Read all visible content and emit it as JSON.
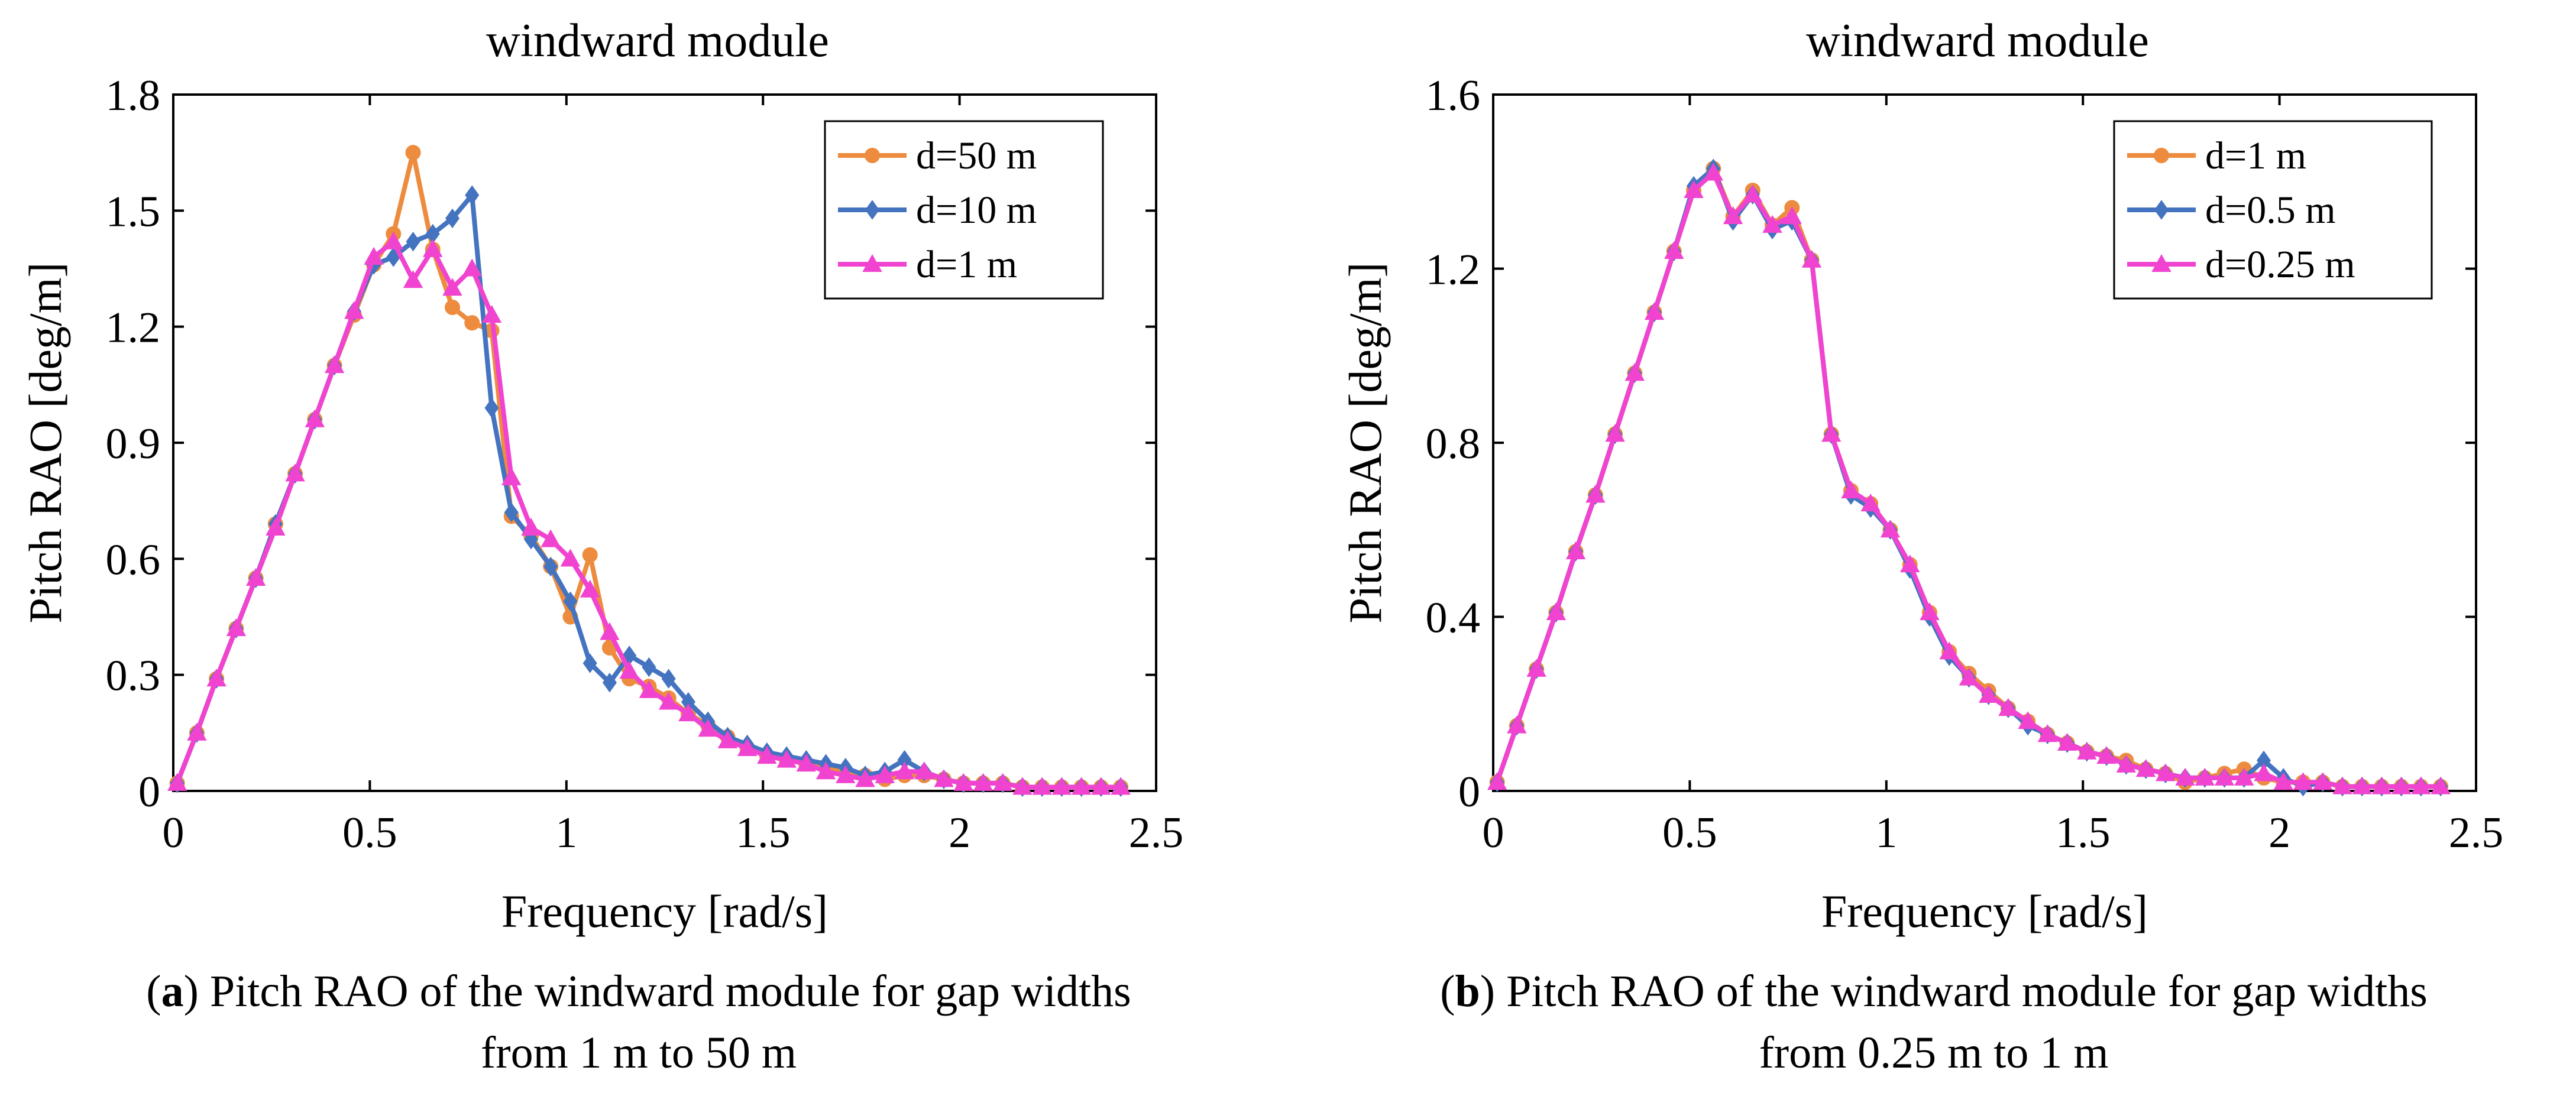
{
  "charts": [
    {
      "title": "windward module",
      "xlabel": "Frequency [rad/s]",
      "ylabel": "Pitch RAO  [deg/m]"
    },
    {
      "title": "windward module",
      "xlabel": "Frequency [rad/s]",
      "ylabel": "Pitch RAO  [deg/m]"
    }
  ],
  "captions": [
    {
      "letter": "a",
      "open": "(",
      "close": ")",
      "text": " Pitch RAO of the windward module for gap widths",
      "line2": "from 1 m to 50 m"
    },
    {
      "letter": "b",
      "open": "(",
      "close": ")",
      "text": " Pitch RAO of the windward module for gap widths",
      "line2": "from 0.25 m to 1 m"
    }
  ],
  "chart_data": [
    {
      "type": "line",
      "title": "windward module",
      "xlabel": "Frequency [rad/s]",
      "ylabel": "Pitch RAO  [deg/m]",
      "xlim": [
        0,
        2.5
      ],
      "ylim": [
        0,
        1.8
      ],
      "xticks": [
        0,
        0.5,
        1,
        1.5,
        2,
        2.5
      ],
      "xtick_labels": [
        "0",
        "0.5",
        "1",
        "1.5",
        "2",
        "2.5"
      ],
      "yticks": [
        0,
        0.3,
        0.6,
        0.9,
        1.2,
        1.5,
        1.8
      ],
      "ytick_labels": [
        "0",
        "0.3",
        "0.6",
        "0.9",
        "1.2",
        "1.5",
        "1.8"
      ],
      "grid": false,
      "legend_position": "top-right",
      "series": [
        {
          "name": "d=50 m",
          "color": "#ED8C3E",
          "marker": "circle",
          "x": [
            0.01,
            0.06,
            0.11,
            0.16,
            0.21,
            0.26,
            0.31,
            0.36,
            0.41,
            0.46,
            0.51,
            0.56,
            0.61,
            0.66,
            0.71,
            0.76,
            0.81,
            0.86,
            0.91,
            0.96,
            1.01,
            1.06,
            1.11,
            1.16,
            1.21,
            1.26,
            1.31,
            1.36,
            1.41,
            1.46,
            1.51,
            1.56,
            1.61,
            1.66,
            1.71,
            1.76,
            1.81,
            1.86,
            1.91,
            1.96,
            2.01,
            2.06,
            2.11,
            2.16,
            2.21,
            2.26,
            2.31,
            2.36,
            2.41
          ],
          "y": [
            0.02,
            0.15,
            0.29,
            0.42,
            0.55,
            0.69,
            0.82,
            0.96,
            1.1,
            1.23,
            1.36,
            1.44,
            1.65,
            1.4,
            1.25,
            1.21,
            1.19,
            0.71,
            0.66,
            0.58,
            0.45,
            0.61,
            0.37,
            0.29,
            0.27,
            0.24,
            0.2,
            0.17,
            0.14,
            0.11,
            0.09,
            0.08,
            0.07,
            0.06,
            0.05,
            0.04,
            0.03,
            0.04,
            0.04,
            0.03,
            0.02,
            0.02,
            0.02,
            0.01,
            0.01,
            0.01,
            0.01,
            0.01,
            0.01
          ]
        },
        {
          "name": "d=10 m",
          "color": "#4473C0",
          "marker": "diamond",
          "x": [
            0.01,
            0.06,
            0.11,
            0.16,
            0.21,
            0.26,
            0.31,
            0.36,
            0.41,
            0.46,
            0.51,
            0.56,
            0.61,
            0.66,
            0.71,
            0.76,
            0.81,
            0.86,
            0.91,
            0.96,
            1.01,
            1.06,
            1.11,
            1.16,
            1.21,
            1.26,
            1.31,
            1.36,
            1.41,
            1.46,
            1.51,
            1.56,
            1.61,
            1.66,
            1.71,
            1.76,
            1.81,
            1.86,
            1.91,
            1.96,
            2.01,
            2.06,
            2.11,
            2.16,
            2.21,
            2.26,
            2.31,
            2.36,
            2.41
          ],
          "y": [
            0.02,
            0.15,
            0.29,
            0.42,
            0.55,
            0.69,
            0.82,
            0.96,
            1.1,
            1.24,
            1.36,
            1.38,
            1.42,
            1.44,
            1.48,
            1.54,
            0.99,
            0.72,
            0.65,
            0.58,
            0.49,
            0.33,
            0.28,
            0.35,
            0.32,
            0.29,
            0.23,
            0.18,
            0.14,
            0.12,
            0.1,
            0.09,
            0.08,
            0.07,
            0.06,
            0.04,
            0.05,
            0.08,
            0.05,
            0.03,
            0.02,
            0.02,
            0.02,
            0.01,
            0.01,
            0.01,
            0.01,
            0.01,
            0.01
          ]
        },
        {
          "name": "d=1 m",
          "color": "#F044D0",
          "marker": "triangle",
          "x": [
            0.01,
            0.06,
            0.11,
            0.16,
            0.21,
            0.26,
            0.31,
            0.36,
            0.41,
            0.46,
            0.51,
            0.56,
            0.61,
            0.66,
            0.71,
            0.76,
            0.81,
            0.86,
            0.91,
            0.96,
            1.01,
            1.06,
            1.11,
            1.16,
            1.21,
            1.26,
            1.31,
            1.36,
            1.41,
            1.46,
            1.51,
            1.56,
            1.61,
            1.66,
            1.71,
            1.76,
            1.81,
            1.86,
            1.91,
            1.96,
            2.01,
            2.06,
            2.11,
            2.16,
            2.21,
            2.26,
            2.31,
            2.36,
            2.41
          ],
          "y": [
            0.02,
            0.15,
            0.29,
            0.42,
            0.55,
            0.68,
            0.82,
            0.96,
            1.1,
            1.24,
            1.38,
            1.42,
            1.32,
            1.4,
            1.3,
            1.35,
            1.23,
            0.81,
            0.68,
            0.65,
            0.6,
            0.52,
            0.41,
            0.31,
            0.26,
            0.23,
            0.2,
            0.16,
            0.13,
            0.11,
            0.09,
            0.08,
            0.07,
            0.05,
            0.04,
            0.03,
            0.04,
            0.05,
            0.05,
            0.03,
            0.02,
            0.02,
            0.02,
            0.01,
            0.01,
            0.01,
            0.01,
            0.01,
            0.01
          ]
        }
      ]
    },
    {
      "type": "line",
      "title": "windward module",
      "xlabel": "Frequency [rad/s]",
      "ylabel": "Pitch RAO  [deg/m]",
      "xlim": [
        0,
        2.5
      ],
      "ylim": [
        0,
        1.6
      ],
      "xticks": [
        0,
        0.5,
        1,
        1.5,
        2,
        2.5
      ],
      "xtick_labels": [
        "0",
        "0.5",
        "1",
        "1.5",
        "2",
        "2.5"
      ],
      "yticks": [
        0,
        0.4,
        0.8,
        1.2,
        1.6
      ],
      "ytick_labels": [
        "0",
        "0.4",
        "0.8",
        "1.2",
        "1.6"
      ],
      "grid": false,
      "legend_position": "top-right",
      "series": [
        {
          "name": "d=1 m",
          "color": "#ED8C3E",
          "marker": "circle",
          "x": [
            0.01,
            0.06,
            0.11,
            0.16,
            0.21,
            0.26,
            0.31,
            0.36,
            0.41,
            0.46,
            0.51,
            0.56,
            0.61,
            0.66,
            0.71,
            0.76,
            0.81,
            0.86,
            0.91,
            0.96,
            1.01,
            1.06,
            1.11,
            1.16,
            1.21,
            1.26,
            1.31,
            1.36,
            1.41,
            1.46,
            1.51,
            1.56,
            1.61,
            1.66,
            1.71,
            1.76,
            1.81,
            1.86,
            1.91,
            1.96,
            2.01,
            2.06,
            2.11,
            2.16,
            2.21,
            2.26,
            2.31,
            2.36,
            2.41
          ],
          "y": [
            0.02,
            0.15,
            0.28,
            0.41,
            0.55,
            0.68,
            0.82,
            0.96,
            1.1,
            1.24,
            1.38,
            1.43,
            1.32,
            1.38,
            1.3,
            1.34,
            1.22,
            0.82,
            0.69,
            0.66,
            0.6,
            0.52,
            0.41,
            0.32,
            0.27,
            0.23,
            0.19,
            0.16,
            0.13,
            0.11,
            0.09,
            0.08,
            0.07,
            0.05,
            0.04,
            0.02,
            0.03,
            0.04,
            0.05,
            0.03,
            0.02,
            0.02,
            0.02,
            0.01,
            0.01,
            0.01,
            0.01,
            0.01,
            0.01
          ]
        },
        {
          "name": "d=0.5 m",
          "color": "#4473C0",
          "marker": "diamond",
          "x": [
            0.01,
            0.06,
            0.11,
            0.16,
            0.21,
            0.26,
            0.31,
            0.36,
            0.41,
            0.46,
            0.51,
            0.56,
            0.61,
            0.66,
            0.71,
            0.76,
            0.81,
            0.86,
            0.91,
            0.96,
            1.01,
            1.06,
            1.11,
            1.16,
            1.21,
            1.26,
            1.31,
            1.36,
            1.41,
            1.46,
            1.51,
            1.56,
            1.61,
            1.66,
            1.71,
            1.76,
            1.81,
            1.86,
            1.91,
            1.96,
            2.01,
            2.06,
            2.11,
            2.16,
            2.21,
            2.26,
            2.31,
            2.36,
            2.41
          ],
          "y": [
            0.02,
            0.15,
            0.28,
            0.41,
            0.55,
            0.68,
            0.82,
            0.96,
            1.1,
            1.24,
            1.39,
            1.43,
            1.31,
            1.37,
            1.29,
            1.31,
            1.22,
            0.82,
            0.68,
            0.65,
            0.6,
            0.51,
            0.4,
            0.31,
            0.26,
            0.22,
            0.19,
            0.15,
            0.13,
            0.11,
            0.09,
            0.08,
            0.06,
            0.05,
            0.04,
            0.03,
            0.03,
            0.03,
            0.03,
            0.07,
            0.03,
            0.01,
            0.02,
            0.01,
            0.01,
            0.01,
            0.01,
            0.01,
            0.01
          ]
        },
        {
          "name": "d=0.25 m",
          "color": "#F044D0",
          "marker": "triangle",
          "x": [
            0.01,
            0.06,
            0.11,
            0.16,
            0.21,
            0.26,
            0.31,
            0.36,
            0.41,
            0.46,
            0.51,
            0.56,
            0.61,
            0.66,
            0.71,
            0.76,
            0.81,
            0.86,
            0.91,
            0.96,
            1.01,
            1.06,
            1.11,
            1.16,
            1.21,
            1.26,
            1.31,
            1.36,
            1.41,
            1.46,
            1.51,
            1.56,
            1.61,
            1.66,
            1.71,
            1.76,
            1.81,
            1.86,
            1.91,
            1.96,
            2.01,
            2.06,
            2.11,
            2.16,
            2.21,
            2.26,
            2.31,
            2.36,
            2.41
          ],
          "y": [
            0.02,
            0.15,
            0.28,
            0.41,
            0.55,
            0.68,
            0.82,
            0.96,
            1.1,
            1.24,
            1.38,
            1.42,
            1.32,
            1.37,
            1.3,
            1.32,
            1.22,
            0.82,
            0.69,
            0.66,
            0.6,
            0.52,
            0.41,
            0.32,
            0.26,
            0.22,
            0.19,
            0.16,
            0.13,
            0.11,
            0.09,
            0.08,
            0.06,
            0.05,
            0.04,
            0.03,
            0.03,
            0.03,
            0.03,
            0.04,
            0.02,
            0.02,
            0.02,
            0.01,
            0.01,
            0.01,
            0.01,
            0.01,
            0.01
          ]
        }
      ]
    }
  ]
}
